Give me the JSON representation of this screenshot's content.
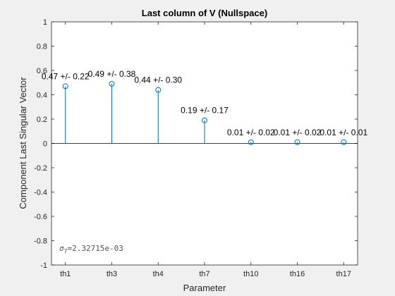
{
  "chart_data": {
    "type": "stem",
    "title": "Last column of V (Nullspace)",
    "xlabel": "Parameter",
    "ylabel": "Component Last Singular Vector",
    "categories": [
      "th1",
      "th3",
      "th4",
      "th7",
      "th10",
      "th16",
      "th17"
    ],
    "values": [
      0.47,
      0.49,
      0.44,
      0.19,
      0.01,
      0.01,
      0.01
    ],
    "value_labels": [
      "0.47 +/- 0.22",
      "0.49 +/- 0.38",
      "0.44 +/- 0.30",
      "0.19 +/- 0.17",
      "0.01 +/- 0.02",
      "0.01 +/- 0.02",
      "0.01 +/- 0.01"
    ],
    "ylim": [
      -1,
      1
    ],
    "yticks": [
      "-1",
      "-0.8",
      "-0.6",
      "-0.4",
      "-0.2",
      "0",
      "0.2",
      "0.4",
      "0.6",
      "0.8",
      "1"
    ],
    "ytick_values": [
      -1,
      -0.8,
      -0.6,
      -0.4,
      -0.2,
      0,
      0.2,
      0.4,
      0.6,
      0.8,
      1
    ],
    "grid": false,
    "series_color": "#0072BD",
    "annotation": {
      "symbol": "σ",
      "subscript": "7",
      "text": "=2.32715e-03"
    }
  }
}
